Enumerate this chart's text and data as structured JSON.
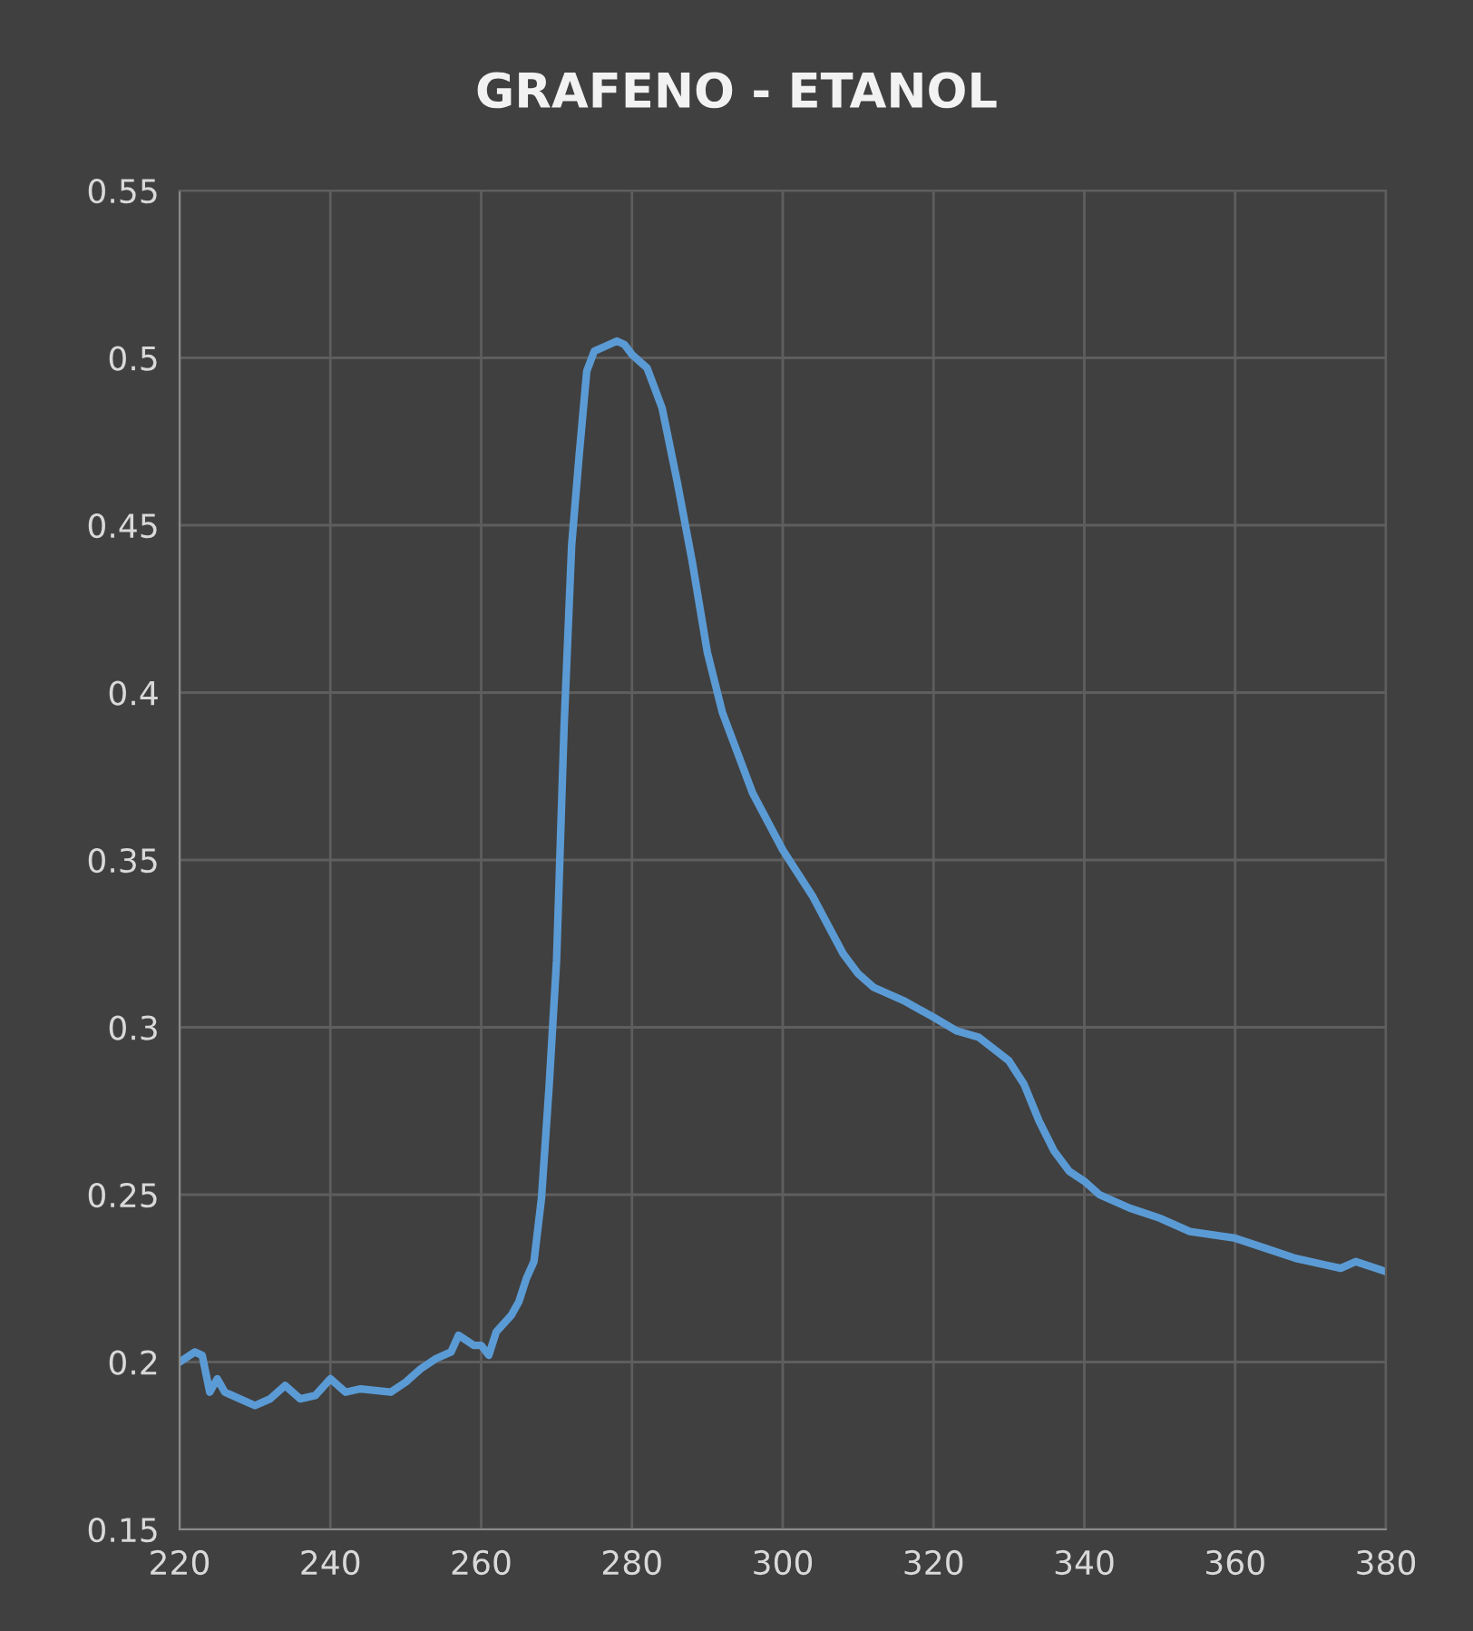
{
  "chart_data": {
    "type": "line",
    "title": "GRAFENO - ETANOL",
    "x": [
      220,
      222,
      223,
      224,
      225,
      226,
      228,
      230,
      232,
      234,
      236,
      238,
      240,
      242,
      244,
      248,
      250,
      252,
      254,
      256,
      257,
      259,
      260,
      261,
      262,
      264,
      265,
      266,
      267,
      268,
      269,
      270,
      271,
      272,
      273,
      274,
      275,
      277,
      278,
      279,
      280,
      282,
      284,
      286,
      288,
      290,
      292,
      296,
      300,
      304,
      308,
      310,
      312,
      316,
      320,
      323,
      326,
      330,
      332,
      334,
      336,
      338,
      340,
      342,
      346,
      350,
      354,
      360,
      364,
      368,
      372,
      374,
      376,
      380
    ],
    "series": [
      {
        "color": "#5b9bd5",
        "values": [
          0.2,
          0.203,
          0.202,
          0.191,
          0.195,
          0.191,
          0.189,
          0.187,
          0.189,
          0.193,
          0.189,
          0.19,
          0.195,
          0.191,
          0.192,
          0.191,
          0.194,
          0.198,
          0.201,
          0.203,
          0.208,
          0.205,
          0.205,
          0.202,
          0.209,
          0.214,
          0.218,
          0.225,
          0.23,
          0.249,
          0.282,
          0.32,
          0.39,
          0.444,
          0.471,
          0.496,
          0.502,
          0.504,
          0.505,
          0.504,
          0.501,
          0.497,
          0.485,
          0.463,
          0.439,
          0.412,
          0.394,
          0.37,
          0.353,
          0.339,
          0.322,
          0.316,
          0.312,
          0.308,
          0.303,
          0.299,
          0.297,
          0.29,
          0.283,
          0.272,
          0.263,
          0.257,
          0.254,
          0.25,
          0.246,
          0.243,
          0.239,
          0.237,
          0.234,
          0.231,
          0.229,
          0.228,
          0.23,
          0.227
        ]
      }
    ],
    "xlim": [
      220,
      380
    ],
    "ylim": [
      0.15,
      0.55
    ],
    "xticks": [
      220,
      240,
      260,
      280,
      300,
      320,
      340,
      360,
      380
    ],
    "yticks": [
      0.15,
      0.2,
      0.25,
      0.3,
      0.35,
      0.4,
      0.45,
      0.5,
      0.55
    ],
    "grid": true,
    "marker": "none",
    "line_style": "solid"
  }
}
